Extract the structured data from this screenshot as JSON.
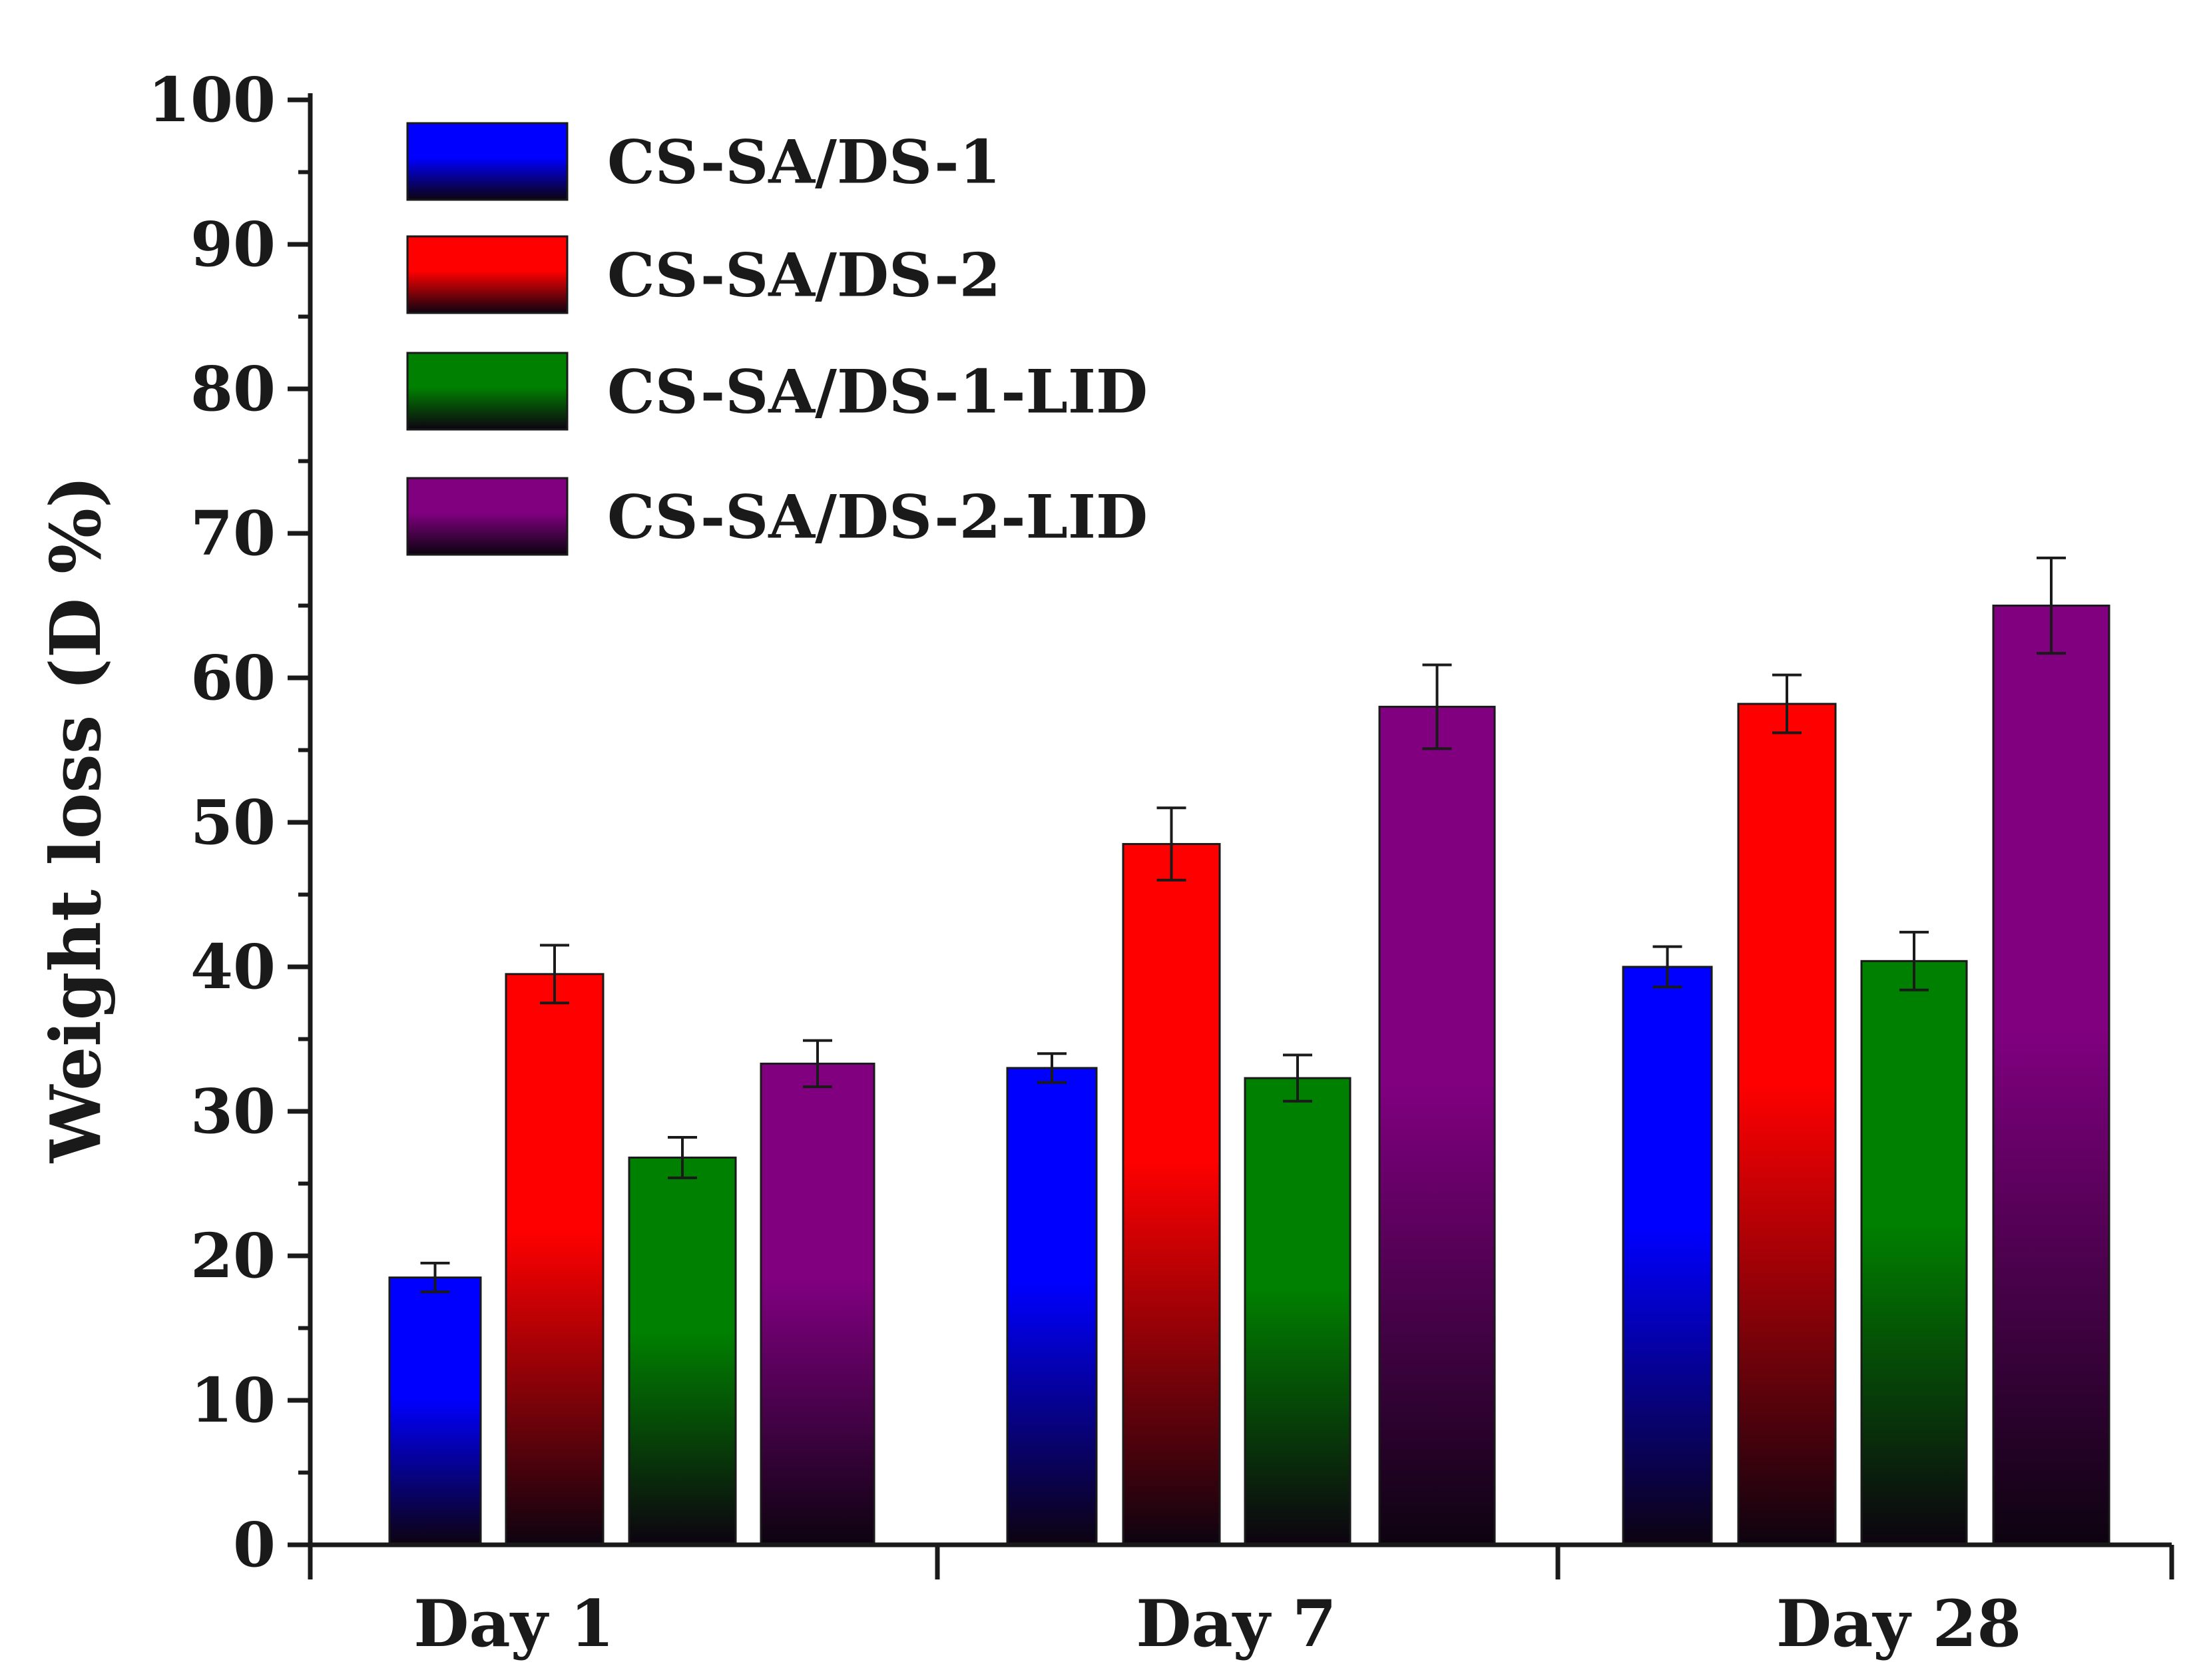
{
  "chart_data": {
    "type": "bar",
    "title": "",
    "xlabel": "",
    "ylabel": "Weight loss (D %)",
    "ylim": [
      0,
      100
    ],
    "yticks": [
      0,
      10,
      20,
      30,
      40,
      50,
      60,
      70,
      80,
      90,
      100
    ],
    "categories": [
      "Day 1",
      "Day 7",
      "Day 28"
    ],
    "legend_position": "top-left",
    "grid": false,
    "series": [
      {
        "name": "CS-SA/DS-1",
        "color": "#0000ff",
        "values": [
          18.5,
          33.0,
          40.0
        ],
        "errors": [
          1.0,
          1.0,
          1.4
        ]
      },
      {
        "name": "CS-SA/DS-2",
        "color": "#ff0000",
        "values": [
          39.5,
          48.5,
          58.2
        ],
        "errors": [
          2.0,
          2.5,
          2.0
        ]
      },
      {
        "name": "CS-SA/DS-1-LID",
        "color": "#008000",
        "values": [
          26.8,
          32.3,
          40.4
        ],
        "errors": [
          1.4,
          1.6,
          2.0
        ]
      },
      {
        "name": "CS-SA/DS-2-LID",
        "color": "#800080",
        "values": [
          33.3,
          58.0,
          65.0
        ],
        "errors": [
          1.6,
          2.9,
          3.3
        ]
      }
    ]
  }
}
